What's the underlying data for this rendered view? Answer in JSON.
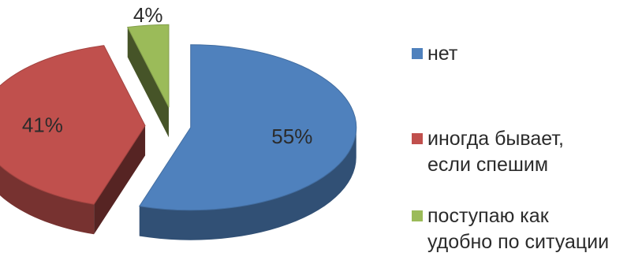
{
  "chart_data": {
    "type": "pie",
    "style": "3d-exploded",
    "categories": [
      "нет",
      "иногда бывает,\nесли спешим",
      "поступаю как\nудобно по ситуации"
    ],
    "values": [
      55,
      41,
      4
    ],
    "data_labels": [
      "55%",
      "41%",
      "4%"
    ],
    "colors": [
      "#4f81bd",
      "#c0504d",
      "#9bbb59"
    ],
    "legend_position": "right",
    "title": ""
  }
}
